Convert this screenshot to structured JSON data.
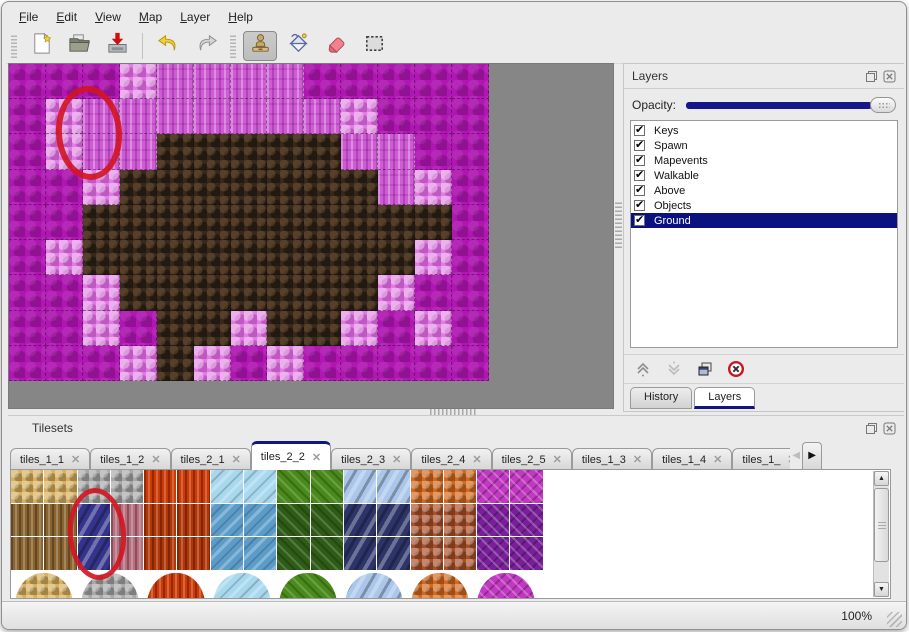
{
  "colors": {
    "selection_navy": "#0b1280",
    "accent_navy": "#101580",
    "slider_track": "#16168c",
    "annotation_red": "#d11420"
  },
  "menu": {
    "items": [
      "File",
      "Edit",
      "View",
      "Map",
      "Layer",
      "Help"
    ]
  },
  "toolbar": {
    "buttons": [
      {
        "name": "new-file",
        "active": false
      },
      {
        "name": "open-file",
        "active": false
      },
      {
        "name": "save-file",
        "active": false
      },
      {
        "name": "undo",
        "active": false
      },
      {
        "name": "redo",
        "active": false
      },
      {
        "name": "stamp-tool",
        "active": true
      },
      {
        "name": "fill-tool",
        "active": false
      },
      {
        "name": "eraser-tool",
        "active": false
      },
      {
        "name": "select-tool",
        "active": false
      }
    ]
  },
  "map": {
    "palette": {
      "M": "#b016b2",
      "P": "#cf5cd4",
      "L": "#e07ce4",
      "B": "#37281c"
    },
    "rows": [
      "MMMLPPPPMMMMM",
      "MLPPPPPPPLMMM",
      "MLPPBBBBBPPMM",
      "MMLBBBBBBBPLM",
      "MMBBBBBBBBBBM",
      "MLBBBBBBBBBLM",
      "MMLBBBBBBBLMM",
      "MMLMBBLBBLMLM",
      "MMMLBLMLMMMMM"
    ],
    "annotation": "red-ellipse"
  },
  "layers_panel": {
    "title": "Layers",
    "opacity_label": "Opacity:",
    "opacity_value": "100%",
    "layers": [
      {
        "name": "Keys",
        "checked": true,
        "selected": false
      },
      {
        "name": "Spawn",
        "checked": true,
        "selected": false
      },
      {
        "name": "Mapevents",
        "checked": true,
        "selected": false
      },
      {
        "name": "Walkable",
        "checked": true,
        "selected": false
      },
      {
        "name": "Above",
        "checked": true,
        "selected": false
      },
      {
        "name": "Objects",
        "checked": true,
        "selected": false
      },
      {
        "name": "Ground",
        "checked": true,
        "selected": true
      }
    ],
    "buttons": [
      "raise-layer",
      "lower-layer",
      "duplicate-layer",
      "delete-layer"
    ],
    "dock_tabs": [
      {
        "label": "History",
        "active": false
      },
      {
        "label": "Layers",
        "active": true
      }
    ]
  },
  "tilesets_panel": {
    "title": "Tilesets",
    "tabs": [
      {
        "label": "tiles_1_1",
        "active": false,
        "truncated": false
      },
      {
        "label": "tiles_1_2",
        "active": false,
        "truncated": false
      },
      {
        "label": "tiles_2_1",
        "active": false,
        "truncated": false
      },
      {
        "label": "tiles_2_2",
        "active": true,
        "truncated": false
      },
      {
        "label": "tiles_2_3",
        "active": false,
        "truncated": false
      },
      {
        "label": "tiles_2_4",
        "active": false,
        "truncated": false
      },
      {
        "label": "tiles_2_5",
        "active": false,
        "truncated": false
      },
      {
        "label": "tiles_1_3",
        "active": false,
        "truncated": false
      },
      {
        "label": "tiles_1_4",
        "active": false,
        "truncated": false
      },
      {
        "label": "tiles_1_",
        "active": false,
        "truncated": true
      }
    ],
    "palette": {
      "s": "#d8b05e",
      "g": "#a8a8a8",
      "v": "#cc3a06",
      "i": "#a8d8ee",
      "n": "#4a8a1c",
      "c": "#aac6ea",
      "o": "#d2691e",
      "w": "#c238c2",
      "k": "#8a6430",
      "d": "#34348c",
      "m": "#b87080",
      "f": "#b03607",
      "j": "#5c9cc8",
      "e": "#2e5c16",
      "x": "#2c3468",
      "r": "#a8502a",
      "u": "#7a1f9a"
    },
    "rows": [
      "ssggvviinnccooww",
      "kkdmffjjeexxrruu",
      "kkdmffjjeexxrruu"
    ],
    "mounds": [
      "s",
      "g",
      "v",
      "i",
      "n",
      "c",
      "o",
      "w"
    ],
    "annotation": "red-ellipse"
  },
  "statusbar": {
    "zoom": "100%"
  }
}
